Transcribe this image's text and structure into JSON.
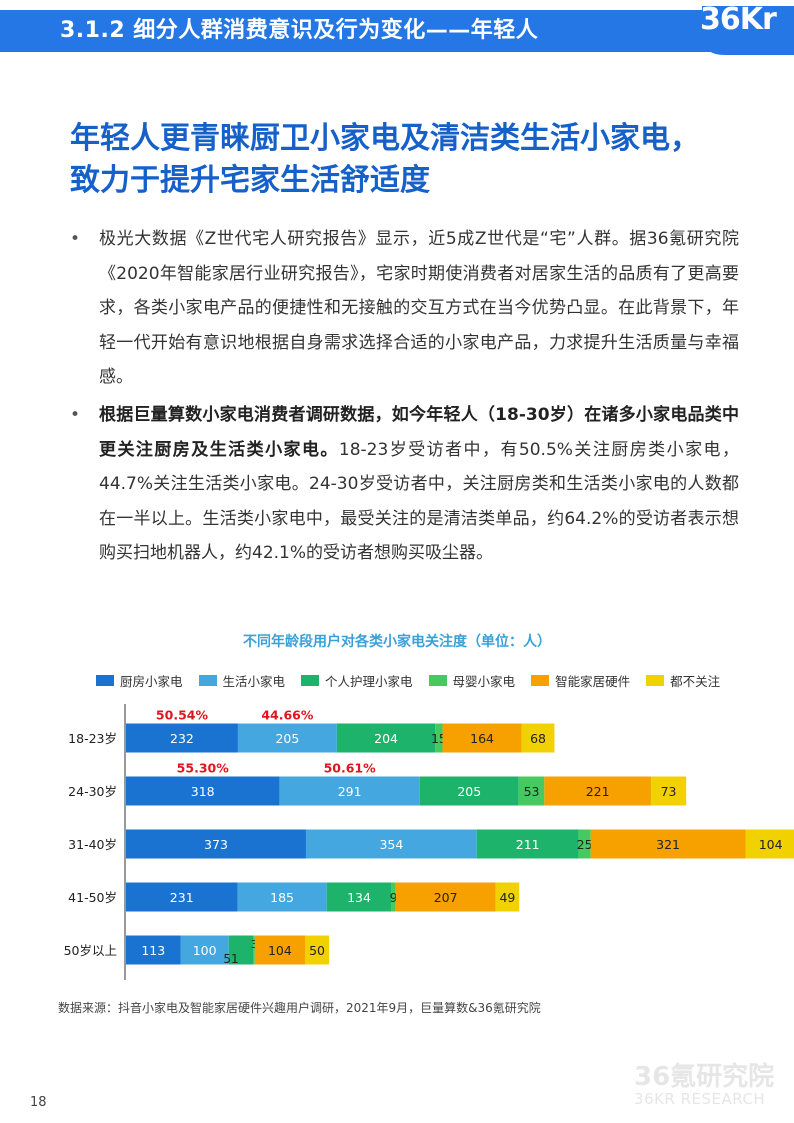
{
  "header": {
    "title": "3.1.2 细分人群消费意识及行为变化——年轻人",
    "logo": "36Kr"
  },
  "headline": {
    "line1": "年轻人更青睐厨卫小家电及清洁类生活小家电，",
    "line2": "致力于提升宅家生活舒适度"
  },
  "bullets": [
    {
      "bold": "",
      "text": "极光大数据《Z世代宅人研究报告》显示，近5成Z世代是“宅”人群。据36氪研究院《2020年智能家居行业研究报告》，宅家时期使消费者对居家生活的品质有了更高要求，各类小家电产品的便捷性和无接触的交互方式在当今优势凸显。在此背景下，年轻一代开始有意识地根据自身需求选择合适的小家电产品，力求提升生活质量与幸福感。"
    },
    {
      "bold": "根据巨量算数小家电消费者调研数据，如今年轻人（18-30岁）在诸多小家电品类中更关注厨房及生活类小家电。",
      "text": "18-23岁受访者中，有50.5%关注厨房类小家电，44.7%关注生活类小家电。24-30岁受访者中，关注厨房类和生活类小家电的人数都在一半以上。生活类小家电中，最受关注的是清洁类单品，约64.2%的受访者表示想购买扫地机器人，约42.1%的受访者想购买吸尘器。"
    }
  ],
  "chart_data": {
    "type": "bar",
    "orientation": "horizontal",
    "stacked": true,
    "title": "不同年龄段用户对各类小家电关注度（单位：人）",
    "categories": [
      "18-23岁",
      "24-30岁",
      "31-40岁",
      "41-50岁",
      "50岁以上"
    ],
    "series": [
      {
        "name": "厨房小家电",
        "color": "#1a73d1",
        "values": [
          232,
          318,
          373,
          231,
          113
        ]
      },
      {
        "name": "生活小家电",
        "color": "#45a7df",
        "values": [
          205,
          291,
          354,
          185,
          100
        ]
      },
      {
        "name": "个人护理小家电",
        "color": "#1db36b",
        "values": [
          204,
          205,
          211,
          134,
          51
        ]
      },
      {
        "name": "母婴小家电",
        "color": "#46c95e",
        "values": [
          15,
          53,
          25,
          9,
          3
        ]
      },
      {
        "name": "智能家居硬件",
        "color": "#f7a101",
        "values": [
          164,
          221,
          321,
          207,
          104
        ]
      },
      {
        "name": "都不关注",
        "color": "#f2d100",
        "values": [
          68,
          73,
          104,
          49,
          50
        ]
      }
    ],
    "annotations": [
      {
        "category": "18-23岁",
        "series": "厨房小家电",
        "text": "50.54%",
        "color": "#e0161d"
      },
      {
        "category": "18-23岁",
        "series": "生活小家电",
        "text": "44.66%",
        "color": "#e0161d"
      },
      {
        "category": "24-30岁",
        "series": "厨房小家电",
        "text": "55.30%",
        "color": "#e0161d"
      },
      {
        "category": "24-30岁",
        "series": "生活小家电",
        "text": "50.61%",
        "color": "#e0161d"
      }
    ],
    "grid": false,
    "legend": "top"
  },
  "source": "数据来源：抖音小家电及智能家居硬件兴趣用户调研，2021年9月，巨量算数&36氪研究院",
  "watermark": {
    "cn": "36氪研究院",
    "en": "36KR RESEARCH"
  },
  "page_number": "18"
}
